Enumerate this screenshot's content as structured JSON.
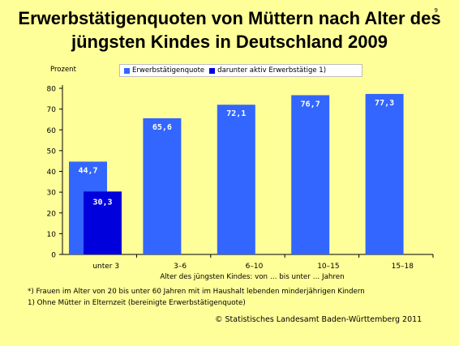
{
  "page_number": "9",
  "title_line1": "Erwerbstätigenquoten von Müttern nach Alter des",
  "title_line2": "jüngsten Kindes in Deutschland 2009",
  "legend": [
    {
      "label": "Erwerbstätigenquote",
      "color": "#3366ff"
    },
    {
      "label": "darunter aktiv Erwerbstätige 1)",
      "color": "#0000dd"
    }
  ],
  "footnote1": "*) Frauen im Alter von 20 bis unter 60 Jahren mit im Haushalt lebenden minderjährigen Kindern",
  "footnote2": "1) Ohne Mütter in Elternzeit (bereinigte Erwerbstätigenquote)",
  "source": "© Statistisches Landesamt Baden-Württemberg 2011",
  "chart_data": {
    "type": "bar",
    "title": "Erwerbstätigenquoten von Müttern nach Alter des jüngsten Kindes in Deutschland 2009",
    "ylabel": "Prozent",
    "xlabel": "Alter des jüngsten Kindes: von … bis unter … Jahren",
    "categories": [
      "unter 3",
      "3–6",
      "6–10",
      "10–15",
      "15–18"
    ],
    "ylim": [
      0,
      80
    ],
    "yticks": [
      0,
      10,
      20,
      30,
      40,
      50,
      60,
      70,
      80
    ],
    "grid": false,
    "legend_position": "top",
    "series": [
      {
        "name": "Erwerbstätigenquote",
        "values": [
          44.7,
          65.6,
          72.1,
          76.7,
          77.3
        ],
        "labels": [
          "44,7",
          "65,6",
          "72,1",
          "76,7",
          "77,3"
        ],
        "color": "#3366ff"
      },
      {
        "name": "darunter aktiv Erwerbstätige 1)",
        "values": [
          30.3,
          null,
          null,
          null,
          null
        ],
        "labels": [
          "30,3",
          null,
          null,
          null,
          null
        ],
        "color": "#0000dd"
      }
    ]
  }
}
